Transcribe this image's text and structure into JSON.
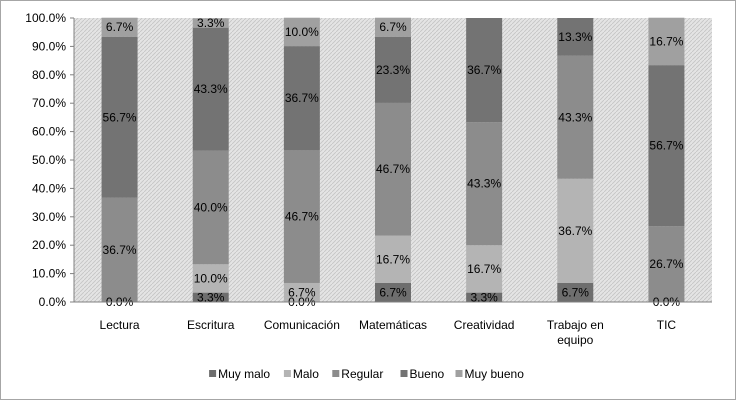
{
  "chart_data": {
    "type": "bar",
    "stacked": true,
    "percent_stacked": true,
    "categories": [
      "Lectura",
      "Escritura",
      "Comunicación",
      "Matemáticas",
      "Creatividad",
      "Trabajo en equipo",
      "TIC"
    ],
    "series": [
      {
        "name": "Muy malo",
        "values": [
          0.0,
          3.3,
          0.0,
          6.7,
          3.3,
          6.7,
          0.0
        ],
        "color": "#6e6e6e"
      },
      {
        "name": "Malo",
        "values": [
          0.0,
          10.0,
          6.7,
          16.7,
          16.7,
          36.7,
          0.0
        ],
        "color": "#b4b4b4"
      },
      {
        "name": "Regular",
        "values": [
          36.7,
          40.0,
          46.7,
          46.7,
          43.3,
          43.3,
          26.7
        ],
        "color": "#8c8c8c"
      },
      {
        "name": "Bueno",
        "values": [
          56.7,
          43.3,
          36.7,
          23.3,
          36.7,
          13.3,
          56.7
        ],
        "color": "#737373"
      },
      {
        "name": "Muy bueno",
        "values": [
          6.7,
          3.3,
          10.0,
          6.7,
          0.0,
          0.0,
          16.7
        ],
        "color": "#a0a0a0"
      }
    ],
    "data_labels": [
      [
        "0.0%",
        "",
        "36.7%",
        "56.7%",
        "6.7%"
      ],
      [
        "3.3%",
        "10.0%",
        "40.0%",
        "43.3%",
        "3.3%"
      ],
      [
        "0.0%",
        "6.7%",
        "46.7%",
        "36.7%",
        "10.0%"
      ],
      [
        "6.7%",
        "16.7%",
        "46.7%",
        "23.3%",
        "6.7%"
      ],
      [
        "3.3%",
        "16.7%",
        "43.3%",
        "36.7%",
        ""
      ],
      [
        "6.7%",
        "36.7%",
        "43.3%",
        "13.3%",
        ""
      ],
      [
        "0.0%",
        "",
        "26.7%",
        "56.7%",
        "16.7%"
      ]
    ],
    "y_ticks": [
      "0.0%",
      "10.0%",
      "20.0%",
      "30.0%",
      "40.0%",
      "50.0%",
      "60.0%",
      "70.0%",
      "80.0%",
      "90.0%",
      "100.0%"
    ],
    "ylim": [
      0,
      100
    ],
    "title": "",
    "xlabel": "",
    "ylabel": "",
    "grid": false,
    "legend_position": "bottom",
    "plot_background": "hatched-light-gray"
  }
}
